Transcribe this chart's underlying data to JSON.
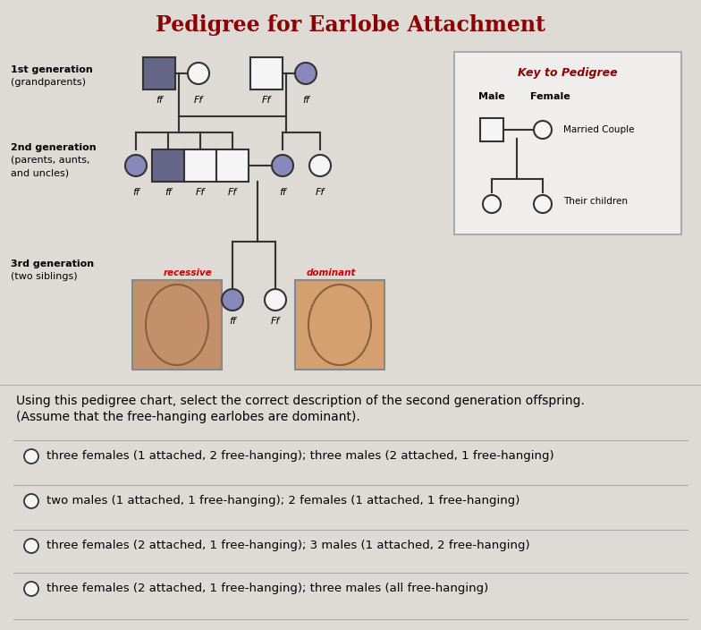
{
  "title": "Pedigree for Earlobe Attachment",
  "title_color": "#8B0000",
  "bg_color": "#c8c4c0",
  "upper_bg": "#dedad6",
  "question_text1": "Using this pedigree chart, select the correct description of the second generation offspring.",
  "question_text2": "(Assume that the free-hanging earlobes are dominant).",
  "options": [
    "three females (1 attached, 2 free-hanging); three males (2 attached, 1 free-hanging)",
    "two males (1 attached, 1 free-hanging); 2 females (1 attached, 1 free-hanging)",
    "three females (2 attached, 1 free-hanging); 3 males (1 attached, 2 free-hanging)",
    "three females (2 attached, 1 free-hanging); three males (all free-hanging)"
  ],
  "filled_color": "#8888bb",
  "dark_square_color": "#666688",
  "line_color": "#333333",
  "key_title_color": "#8B0000",
  "recessive_label_color": "#cc0000",
  "dominant_label_color": "#cc0000"
}
